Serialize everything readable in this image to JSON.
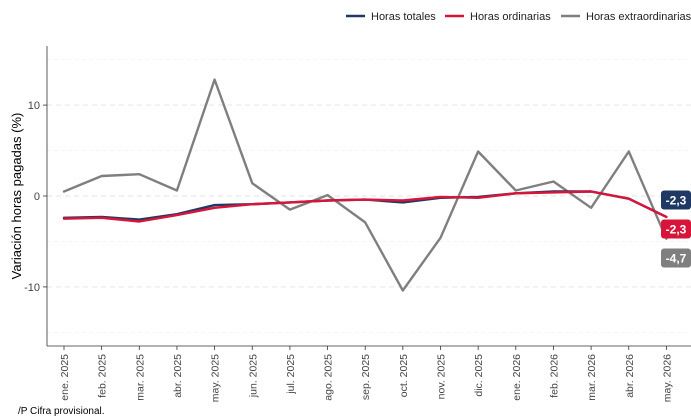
{
  "chart_data": {
    "type": "line",
    "title": "",
    "xlabel": "",
    "ylabel": "Variación horas pagadas (%)",
    "ylim": [
      -16.5,
      16.5
    ],
    "yticks": [
      -10,
      0,
      10
    ],
    "ytick_labels": [
      "-10",
      "0",
      "10"
    ],
    "categories": [
      "ene. 2025",
      "feb. 2025",
      "mar. 2025",
      "abr. 2025",
      "may. 2025",
      "jun. 2025",
      "jul. 2025",
      "ago. 2025",
      "sep. 2025",
      "oct. 2025",
      "nov. 2025",
      "dic. 2025",
      "ene. 2026",
      "feb. 2026",
      "mar. 2026",
      "abr. 2026",
      "may. 2026"
    ],
    "legend_position": "top-right",
    "grid": true,
    "series": [
      {
        "name": "Horas totales",
        "color": "#1f3864",
        "values": [
          -2.4,
          -2.3,
          -2.6,
          -2.0,
          -1.0,
          -0.9,
          -0.7,
          -0.5,
          -0.4,
          -0.7,
          -0.2,
          -0.1,
          0.3,
          0.5,
          0.5,
          -0.3,
          -2.3
        ],
        "end_label": "-2,3"
      },
      {
        "name": "Horas ordinarias",
        "color": "#d7153a",
        "values": [
          -2.5,
          -2.4,
          -2.8,
          -2.1,
          -1.3,
          -0.9,
          -0.7,
          -0.5,
          -0.4,
          -0.5,
          -0.1,
          -0.2,
          0.3,
          0.4,
          0.5,
          -0.3,
          -2.3
        ],
        "end_label": "-2,3"
      },
      {
        "name": "Horas extraordinarias",
        "color": "#7f7f7f",
        "values": [
          0.5,
          2.2,
          2.4,
          0.6,
          12.8,
          1.4,
          -1.5,
          0.1,
          -2.9,
          -10.4,
          -4.6,
          4.9,
          0.6,
          1.6,
          -1.3,
          4.9,
          -4.7
        ],
        "end_label": "-4,7"
      }
    ]
  },
  "footnote": "/P Cifra provisional."
}
